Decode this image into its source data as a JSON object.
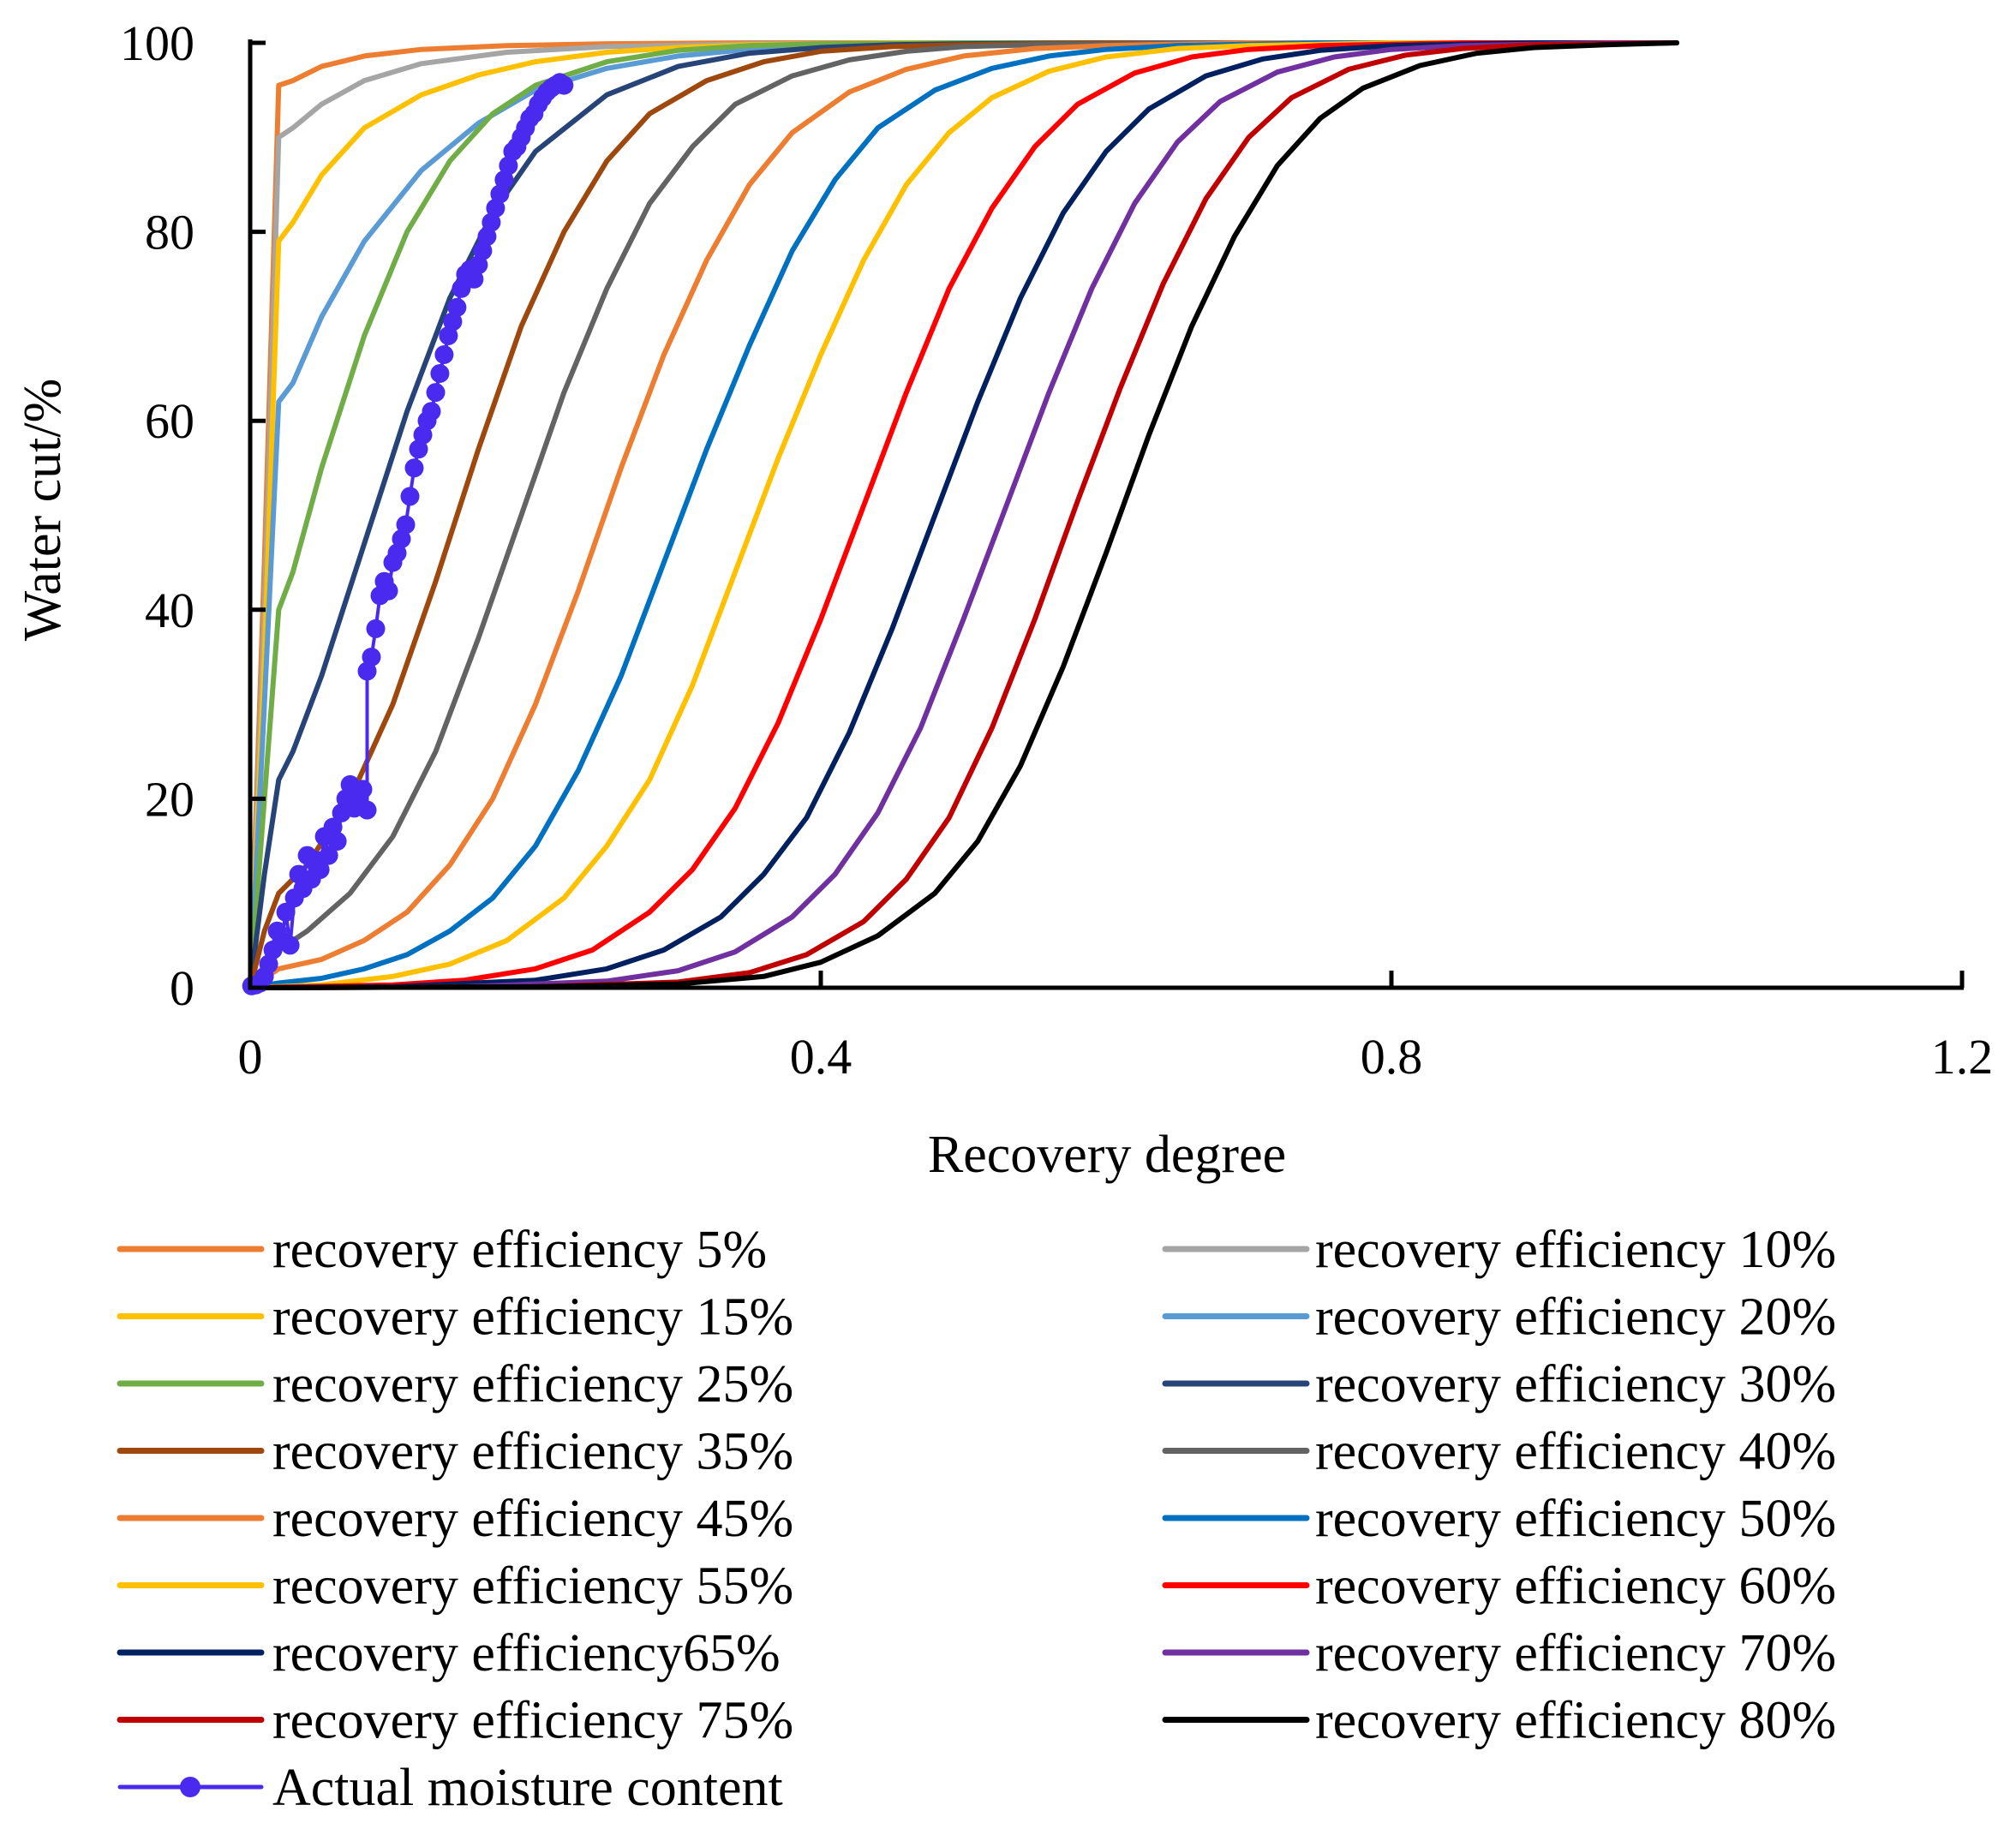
{
  "chart_data": {
    "type": "line",
    "title": "",
    "xlabel": "Recovery degree",
    "ylabel": "Water cut/%",
    "xlim": [
      0,
      1.2
    ],
    "ylim": [
      0,
      100
    ],
    "xticks": [
      "0",
      "0.4",
      "0.8",
      "1.2"
    ],
    "yticks": [
      "0",
      "20",
      "40",
      "60",
      "80",
      "100"
    ],
    "grid": false,
    "legend_position": "bottom",
    "series": [
      {
        "name": "recovery efficiency 5%",
        "color": "#ED7D31",
        "x": [
          0,
          0.01,
          0.02,
          0.03,
          0.05,
          0.08,
          0.12,
          0.18,
          0.25,
          0.35,
          0.5,
          0.7,
          1.0
        ],
        "y": [
          0,
          45,
          95.5,
          96,
          97.5,
          98.6,
          99.3,
          99.7,
          99.9,
          100,
          100,
          100,
          100
        ]
      },
      {
        "name": "recovery efficiency 10%",
        "color": "#A5A5A5",
        "x": [
          0,
          0.01,
          0.02,
          0.03,
          0.05,
          0.08,
          0.12,
          0.18,
          0.25,
          0.35,
          0.5,
          0.7,
          1.0
        ],
        "y": [
          0,
          40,
          90,
          91,
          93.5,
          96,
          97.8,
          99,
          99.6,
          99.9,
          100,
          100,
          100
        ]
      },
      {
        "name": "recovery efficiency 15%",
        "color": "#FFC000",
        "x": [
          0,
          0.01,
          0.02,
          0.03,
          0.05,
          0.08,
          0.12,
          0.16,
          0.2,
          0.25,
          0.3,
          0.35,
          0.45,
          0.6,
          0.8,
          1.0
        ],
        "y": [
          0,
          35,
          79,
          81,
          86,
          91,
          94.5,
          96.6,
          98,
          99,
          99.5,
          99.8,
          100,
          100,
          100,
          100
        ]
      },
      {
        "name": "recovery efficiency 20%",
        "color": "#5B9BD5",
        "x": [
          0,
          0.01,
          0.02,
          0.03,
          0.05,
          0.08,
          0.12,
          0.16,
          0.2,
          0.25,
          0.3,
          0.35,
          0.4,
          0.5,
          0.7,
          1.0
        ],
        "y": [
          0,
          30,
          62,
          64,
          71,
          79,
          86.5,
          91.5,
          95,
          97.3,
          98.6,
          99.3,
          99.7,
          100,
          100,
          100
        ]
      },
      {
        "name": "recovery efficiency 25%",
        "color": "#70AD47",
        "x": [
          0,
          0.01,
          0.02,
          0.03,
          0.05,
          0.08,
          0.11,
          0.14,
          0.17,
          0.2,
          0.25,
          0.3,
          0.35,
          0.4,
          0.5,
          0.7,
          1.0
        ],
        "y": [
          0,
          20,
          40,
          44,
          55,
          69,
          80,
          87.5,
          92.5,
          95.5,
          98,
          99.2,
          99.7,
          99.9,
          100,
          100,
          100
        ]
      },
      {
        "name": "recovery efficiency 30%",
        "color": "#264478",
        "x": [
          0,
          0.01,
          0.02,
          0.03,
          0.05,
          0.08,
          0.11,
          0.14,
          0.17,
          0.2,
          0.25,
          0.3,
          0.35,
          0.4,
          0.45,
          0.5,
          0.6,
          0.8,
          1.0
        ],
        "y": [
          0,
          12,
          22,
          25,
          33,
          47,
          61,
          73,
          82,
          88.5,
          94.5,
          97.5,
          98.9,
          99.5,
          99.8,
          99.9,
          100,
          100,
          100
        ]
      },
      {
        "name": "recovery efficiency 35%",
        "color": "#9E480E",
        "x": [
          0,
          0.01,
          0.02,
          0.04,
          0.07,
          0.1,
          0.13,
          0.16,
          0.19,
          0.22,
          0.25,
          0.28,
          0.32,
          0.36,
          0.4,
          0.45,
          0.5,
          0.6,
          0.8,
          1.0
        ],
        "y": [
          0,
          6,
          10,
          13,
          20,
          30,
          43,
          57,
          70,
          80,
          87.5,
          92.5,
          96,
          98,
          99.1,
          99.6,
          99.8,
          100,
          100,
          100
        ]
      },
      {
        "name": "recovery efficiency 40%",
        "color": "#636363",
        "x": [
          0,
          0.02,
          0.04,
          0.07,
          0.1,
          0.13,
          0.16,
          0.19,
          0.22,
          0.25,
          0.28,
          0.31,
          0.34,
          0.38,
          0.42,
          0.46,
          0.5,
          0.55,
          0.65,
          0.8,
          1.0
        ],
        "y": [
          0,
          4,
          6,
          10,
          16,
          25,
          37,
          50,
          63,
          74,
          83,
          89,
          93.5,
          96.5,
          98.2,
          99.1,
          99.6,
          99.8,
          100,
          100,
          100
        ]
      },
      {
        "name": "recovery efficiency 45%",
        "color": "#ED7D31",
        "x": [
          0,
          0.02,
          0.05,
          0.08,
          0.11,
          0.14,
          0.17,
          0.2,
          0.23,
          0.26,
          0.29,
          0.32,
          0.35,
          0.38,
          0.42,
          0.46,
          0.5,
          0.55,
          0.6,
          0.7,
          0.85,
          1.0
        ],
        "y": [
          0,
          2,
          3,
          5,
          8,
          13,
          20,
          30,
          42,
          55,
          67,
          77,
          85,
          90.5,
          94.8,
          97.2,
          98.6,
          99.4,
          99.7,
          100,
          100,
          100
        ]
      },
      {
        "name": "recovery efficiency 50%",
        "color": "#0070C0",
        "x": [
          0,
          0.02,
          0.05,
          0.08,
          0.11,
          0.14,
          0.17,
          0.2,
          0.23,
          0.26,
          0.29,
          0.32,
          0.35,
          0.38,
          0.41,
          0.44,
          0.48,
          0.52,
          0.56,
          0.6,
          0.65,
          0.75,
          0.9,
          1.0
        ],
        "y": [
          0,
          0.5,
          1,
          2,
          3.5,
          6,
          9.5,
          15,
          23,
          33,
          45,
          57,
          68,
          78,
          85.5,
          91,
          95,
          97.3,
          98.6,
          99.3,
          99.7,
          100,
          100,
          100
        ]
      },
      {
        "name": "recovery efficiency 55%",
        "color": "#FFC000",
        "x": [
          0,
          0.05,
          0.1,
          0.14,
          0.18,
          0.22,
          0.25,
          0.28,
          0.31,
          0.34,
          0.37,
          0.4,
          0.43,
          0.46,
          0.49,
          0.52,
          0.56,
          0.6,
          0.65,
          0.7,
          0.8,
          0.9,
          1.0
        ],
        "y": [
          0,
          0.3,
          1.2,
          2.5,
          5,
          9.5,
          15,
          22,
          32,
          44,
          56,
          67,
          77,
          85,
          90.5,
          94.2,
          97,
          98.5,
          99.4,
          99.7,
          100,
          100,
          100
        ]
      },
      {
        "name": "recovery efficiency 60%",
        "color": "#FF0000",
        "x": [
          0,
          0.1,
          0.15,
          0.2,
          0.24,
          0.28,
          0.31,
          0.34,
          0.37,
          0.4,
          0.43,
          0.46,
          0.49,
          0.52,
          0.55,
          0.58,
          0.62,
          0.66,
          0.7,
          0.75,
          0.85,
          1.0
        ],
        "y": [
          0,
          0.3,
          0.8,
          2,
          4,
          8,
          12.5,
          19,
          28,
          39,
          51,
          63,
          74,
          82.5,
          89,
          93.5,
          96.8,
          98.5,
          99.3,
          99.7,
          100,
          100
        ]
      },
      {
        "name": "recovery efficiency65%",
        "color": "#002060",
        "x": [
          0,
          0.1,
          0.2,
          0.25,
          0.29,
          0.33,
          0.36,
          0.39,
          0.42,
          0.45,
          0.48,
          0.51,
          0.54,
          0.57,
          0.6,
          0.63,
          0.67,
          0.71,
          0.75,
          0.8,
          0.9,
          1.0
        ],
        "y": [
          0,
          0.1,
          0.8,
          2,
          4,
          7.5,
          12,
          18,
          27,
          38,
          50,
          62,
          73,
          82,
          88.5,
          93,
          96.5,
          98.3,
          99.2,
          99.7,
          100,
          100
        ]
      },
      {
        "name": "recovery efficiency 70%",
        "color": "#7030A0",
        "x": [
          0,
          0.15,
          0.25,
          0.3,
          0.34,
          0.38,
          0.41,
          0.44,
          0.47,
          0.5,
          0.53,
          0.56,
          0.59,
          0.62,
          0.65,
          0.68,
          0.72,
          0.76,
          0.8,
          0.85,
          0.95,
          1.0
        ],
        "y": [
          0,
          0.1,
          0.7,
          1.8,
          3.8,
          7.5,
          12,
          18.5,
          27.5,
          39,
          51,
          63,
          74,
          83,
          89.5,
          93.8,
          96.9,
          98.5,
          99.3,
          99.7,
          100,
          100
        ]
      },
      {
        "name": "recovery efficiency 75%",
        "color": "#C00000",
        "x": [
          0,
          0.2,
          0.3,
          0.35,
          0.39,
          0.43,
          0.46,
          0.49,
          0.52,
          0.55,
          0.58,
          0.61,
          0.64,
          0.67,
          0.7,
          0.73,
          0.77,
          0.81,
          0.85,
          0.9,
          1.0
        ],
        "y": [
          0,
          0.1,
          0.6,
          1.6,
          3.5,
          7,
          11.5,
          18,
          27.5,
          39,
          51.5,
          63.5,
          74.5,
          83.5,
          90,
          94.2,
          97.2,
          98.7,
          99.4,
          99.8,
          100
        ]
      },
      {
        "name": "recovery efficiency 80%",
        "color": "#000000",
        "x": [
          0,
          0.2,
          0.3,
          0.36,
          0.4,
          0.44,
          0.48,
          0.51,
          0.54,
          0.57,
          0.6,
          0.63,
          0.66,
          0.69,
          0.72,
          0.75,
          0.78,
          0.82,
          0.86,
          0.9,
          0.95,
          1.0
        ],
        "y": [
          0,
          0.1,
          0.4,
          1.2,
          2.7,
          5.5,
          10,
          15.5,
          23.5,
          34,
          46,
          58.5,
          70,
          79.5,
          87,
          92,
          95.2,
          97.6,
          98.9,
          99.5,
          99.8,
          100
        ]
      },
      {
        "name": "Actual moisture content",
        "color": "#4B2AF0",
        "markers": true,
        "x": [
          0.001,
          0.004,
          0.007,
          0.01,
          0.013,
          0.016,
          0.019,
          0.022,
          0.025,
          0.028,
          0.031,
          0.034,
          0.037,
          0.04,
          0.043,
          0.046,
          0.049,
          0.052,
          0.055,
          0.058,
          0.061,
          0.064,
          0.067,
          0.07,
          0.073,
          0.076,
          0.079,
          0.082,
          0.082,
          0.085,
          0.088,
          0.091,
          0.094,
          0.097,
          0.1,
          0.103,
          0.106,
          0.109,
          0.112,
          0.115,
          0.118,
          0.121,
          0.124,
          0.127,
          0.13,
          0.133,
          0.136,
          0.139,
          0.142,
          0.145,
          0.148,
          0.151,
          0.154,
          0.157,
          0.16,
          0.163,
          0.166,
          0.169,
          0.172,
          0.175,
          0.178,
          0.181,
          0.184,
          0.187,
          0.19,
          0.193,
          0.196,
          0.199,
          0.202,
          0.205,
          0.208,
          0.211,
          0.214,
          0.217,
          0.22
        ],
        "y": [
          0.2,
          0.3,
          0.5,
          1.2,
          2.5,
          4,
          6,
          5,
          8,
          4.5,
          9.5,
          12,
          10.5,
          14,
          11.5,
          13.5,
          12.5,
          16,
          14,
          17,
          15.5,
          18.5,
          20,
          21.5,
          19,
          20.5,
          21,
          18.8,
          33.5,
          35,
          38,
          41.5,
          43,
          42,
          45,
          46,
          47.5,
          49,
          52,
          55,
          57,
          58.5,
          60,
          61,
          63,
          65,
          67,
          69,
          70.5,
          72,
          74,
          75.5,
          76,
          75,
          76.5,
          78,
          79.5,
          81,
          82.5,
          84,
          85.5,
          87,
          88.5,
          89,
          90,
          91,
          92,
          92.5,
          93.5,
          94.2,
          94.8,
          95.2,
          95.5,
          95.8,
          95.5
        ]
      }
    ]
  }
}
